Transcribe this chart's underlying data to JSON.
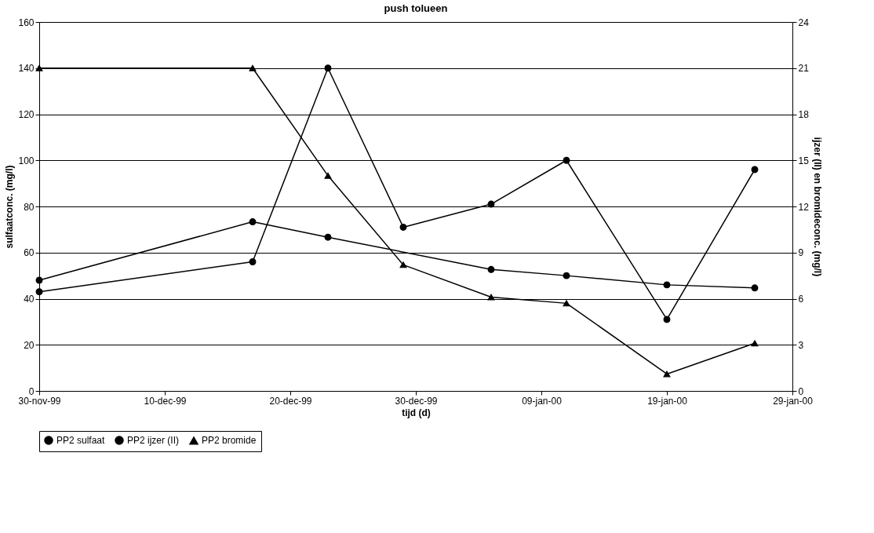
{
  "chart_data": {
    "type": "line",
    "title": "push tolueen",
    "xlabel": "tijd (d)",
    "ylabel": "sulfaatconc. (mg/l)",
    "y2label": "ijzer (II) en bromideconc. (mg/l)",
    "xlim": [
      "1999-11-30",
      "2000-01-29"
    ],
    "xticks": [
      {
        "value": "1999-11-30",
        "label": "30-nov-99"
      },
      {
        "value": "1999-12-10",
        "label": "10-dec-99"
      },
      {
        "value": "1999-12-20",
        "label": "20-dec-99"
      },
      {
        "value": "1999-12-30",
        "label": "30-dec-99"
      },
      {
        "value": "2000-01-09",
        "label": "09-jan-00"
      },
      {
        "value": "2000-01-19",
        "label": "19-jan-00"
      },
      {
        "value": "2000-01-29",
        "label": "29-jan-00"
      }
    ],
    "ylim": [
      0,
      160
    ],
    "yticks": [
      0,
      20,
      40,
      60,
      80,
      100,
      120,
      140,
      160
    ],
    "y2lim": [
      0,
      24
    ],
    "y2ticks": [
      0,
      3,
      6,
      9,
      12,
      15,
      18,
      21,
      24
    ],
    "grid": "y",
    "legend": "bottom",
    "series": [
      {
        "name": "PP2 sulfaat",
        "color": "#000000",
        "marker": "circle",
        "x": [
          "1999-11-30",
          "1999-12-17",
          "1999-12-23",
          "1999-12-29",
          "2000-01-05",
          "2000-01-11",
          "2000-01-19",
          "2000-01-26"
        ],
        "values": [
          43,
          56,
          140,
          71,
          81,
          100,
          31,
          96
        ]
      },
      {
        "name": "PP2 ijzer (II)",
        "color": "#000000",
        "marker": "circle",
        "axis": "y2",
        "x": [
          "1999-11-30",
          "1999-12-17",
          "1999-12-23",
          "2000-01-05",
          "2000-01-11",
          "2000-01-19",
          "2000-01-26"
        ],
        "values": [
          7.2,
          11.0,
          10.0,
          7.9,
          7.5,
          6.9,
          6.7
        ]
      },
      {
        "name": "PP2 bromide",
        "color": "#000000",
        "marker": "triangle",
        "axis": "y2",
        "x": [
          "1999-11-30",
          "1999-12-17",
          "1999-12-23",
          "1999-12-29",
          "2000-01-05",
          "2000-01-11",
          "2000-01-19",
          "2000-01-26"
        ],
        "values": [
          21,
          21,
          14.0,
          8.2,
          6.1,
          5.7,
          1.1,
          3.1
        ]
      }
    ]
  }
}
